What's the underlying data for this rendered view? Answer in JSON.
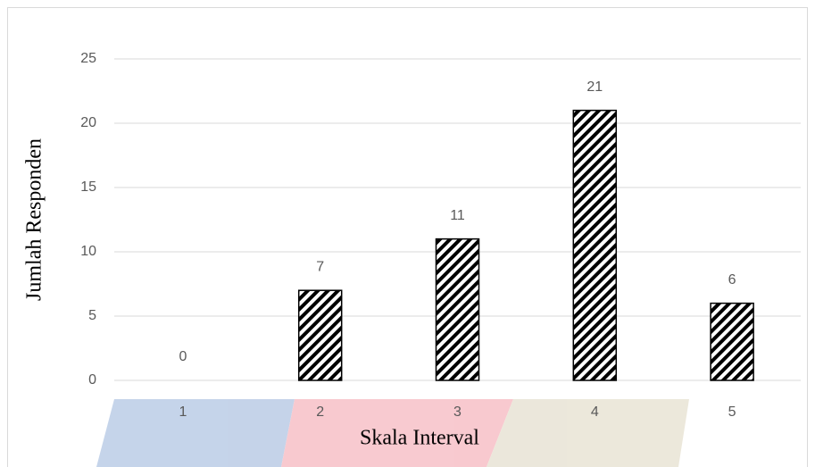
{
  "chart_data": {
    "type": "bar",
    "x_label": "Skala Interval",
    "y_label": "Jumlah Responden",
    "categories": [
      "1",
      "2",
      "3",
      "4",
      "5"
    ],
    "values": [
      0,
      7,
      11,
      21,
      6
    ],
    "color": "#000000",
    "ylim": [
      0,
      25
    ],
    "yticks": [
      0,
      5,
      10,
      15,
      20,
      25
    ],
    "grid": true
  }
}
